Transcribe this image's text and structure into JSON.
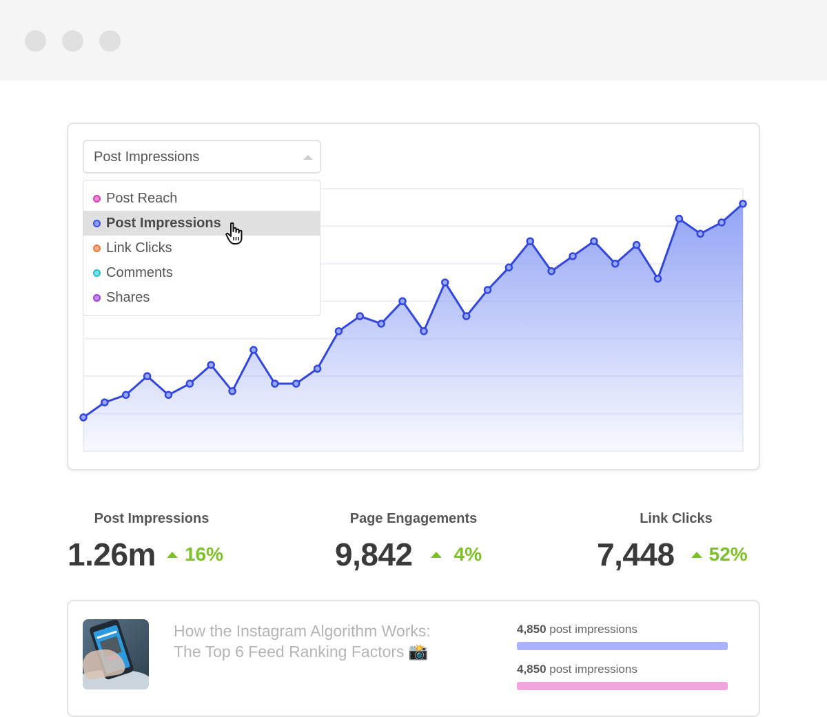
{
  "window": {
    "traffic_lights": [
      "close",
      "minimize",
      "maximize"
    ]
  },
  "chart_card": {
    "select": {
      "value": "Post Impressions",
      "caret_icon": "caret-up-icon"
    },
    "dropdown": {
      "items": [
        {
          "label": "Post Reach",
          "color": "#d63fb3",
          "active": false
        },
        {
          "label": "Post Impressions",
          "color": "#3b4fe0",
          "active": true
        },
        {
          "label": "Link Clicks",
          "color": "#f07a3a",
          "active": false
        },
        {
          "label": "Comments",
          "color": "#1fc0c9",
          "active": false
        },
        {
          "label": "Shares",
          "color": "#9b3fe0",
          "active": false
        }
      ]
    }
  },
  "chart_data": {
    "type": "area",
    "title": "Post Impressions",
    "xlabel": "",
    "ylabel": "",
    "grid": true,
    "line_color": "#3146e0",
    "fill_color": "#8d9ff5",
    "x": [
      1,
      2,
      3,
      4,
      5,
      6,
      7,
      8,
      9,
      10,
      11,
      12,
      13,
      14,
      15,
      16,
      17,
      18,
      19,
      20,
      21,
      22,
      23,
      24,
      25,
      26,
      27,
      28,
      29,
      30,
      31,
      32
    ],
    "values": [
      9,
      13,
      15,
      20,
      15,
      18,
      23,
      16,
      27,
      18,
      18,
      22,
      32,
      36,
      34,
      40,
      32,
      45,
      36,
      43,
      49,
      56,
      48,
      52,
      56,
      50,
      55,
      46,
      62,
      58,
      61,
      66
    ],
    "ylim": [
      0,
      70
    ],
    "gridlines": 7
  },
  "stats": [
    {
      "label": "Post Impressions",
      "value": "1.26m",
      "change": "16%",
      "direction": "up"
    },
    {
      "label": "Page Engagements",
      "value": "9,842",
      "change": "4%",
      "direction": "up"
    },
    {
      "label": "Link Clicks",
      "value": "7,448",
      "change": "52%",
      "direction": "up"
    }
  ],
  "post": {
    "title_line1": "How the Instagram Algorithm Works:",
    "title_line2": "The Top 6 Feed Ranking Factors 📸",
    "metrics": [
      {
        "count": "4,850",
        "label": " post impressions",
        "color": "#a9b2fb"
      },
      {
        "count": "4,850",
        "label": " post impressions",
        "color": "#f0a6dd"
      }
    ]
  },
  "colors": {
    "accent_green": "#7cc225",
    "line_blue": "#3146e0"
  }
}
